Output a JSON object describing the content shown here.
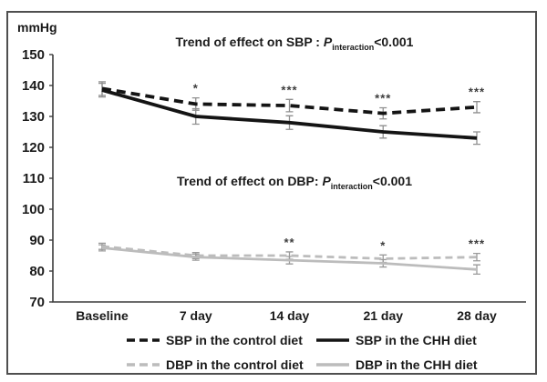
{
  "chart_data": {
    "type": "line",
    "title": "",
    "ylabel": "mmHg",
    "xlabel": "",
    "categories": [
      "Baseline",
      "7 day",
      "14 day",
      "21 day",
      "28 day"
    ],
    "ylim": [
      70,
      150
    ],
    "ytick_step": 10,
    "yticks": [
      70,
      80,
      90,
      100,
      110,
      120,
      130,
      140,
      150
    ],
    "grid": false,
    "legend_position": "bottom",
    "error_bars": true,
    "series": [
      {
        "name": "SBP in the control diet",
        "style": "dashed",
        "color": "#141414",
        "err_color": "#8f8f8f",
        "values": [
          139,
          134,
          133.5,
          131,
          133
        ],
        "errors": [
          2.2,
          2,
          2,
          1.8,
          1.8
        ],
        "significance": [
          "",
          "*",
          "***",
          "***",
          "***"
        ]
      },
      {
        "name": "SBP in the CHH diet",
        "style": "solid",
        "color": "#141414",
        "err_color": "#8f8f8f",
        "values": [
          138.5,
          130,
          128,
          125,
          123
        ],
        "errors": [
          2.2,
          2.5,
          2.2,
          2,
          2
        ],
        "significance": [
          "",
          "",
          "",
          "",
          ""
        ]
      },
      {
        "name": "DBP in the control diet",
        "style": "dashed",
        "color": "#bcbcbc",
        "err_color": "#9a9a9a",
        "values": [
          88,
          85,
          85,
          84,
          84.5
        ],
        "errors": [
          1,
          1,
          1.2,
          1.2,
          1.2
        ],
        "significance": [
          "",
          "",
          "**",
          "*",
          "***"
        ]
      },
      {
        "name": "DBP in the CHH diet",
        "style": "solid",
        "color": "#bcbcbc",
        "err_color": "#9a9a9a",
        "values": [
          87.5,
          84.5,
          83.5,
          82.5,
          80.5
        ],
        "errors": [
          1,
          1,
          1.2,
          1.2,
          1.5
        ],
        "significance": [
          "",
          "",
          "",
          "",
          ""
        ]
      }
    ],
    "annotations": [
      {
        "prefix": "Trend of effect on SBP : ",
        "p": "P",
        "sub": "interaction",
        "suffix": "<0.001"
      },
      {
        "prefix": "Trend of effect on DBP: ",
        "p": "P",
        "sub": "interaction",
        "suffix": "<0.001"
      }
    ]
  }
}
